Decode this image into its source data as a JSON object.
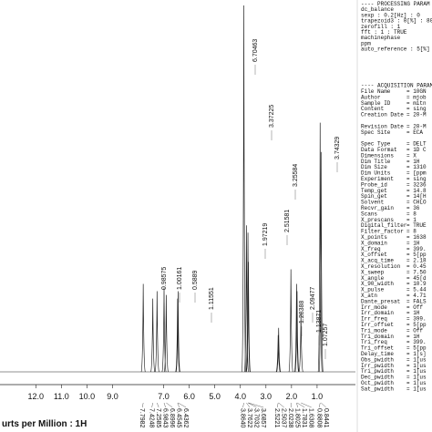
{
  "chart_data": {
    "type": "nmr",
    "x_title": "urts per Million : 1H",
    "xlim": [
      13.4,
      -0.5
    ],
    "ylim": [
      0,
      100
    ],
    "xticks": [
      {
        "value": 12,
        "label": "12.0"
      },
      {
        "value": 11,
        "label": "11.0"
      },
      {
        "value": 10,
        "label": "10.0"
      },
      {
        "value": 9,
        "label": "9.0"
      },
      {
        "value": 7,
        "label": "7.0"
      },
      {
        "value": 6,
        "label": "6.0"
      },
      {
        "value": 5,
        "label": "5.0"
      },
      {
        "value": 4,
        "label": "4.0"
      },
      {
        "value": 3,
        "label": "3.0"
      },
      {
        "value": 2,
        "label": "2.0"
      },
      {
        "value": 1,
        "label": "1.0"
      }
    ],
    "color": "#222222",
    "peaks": {
      "x": [
        7.7982,
        7.4248,
        7.2585,
        6.9843,
        6.8996,
        6.4545,
        6.4362,
        3.864,
        3.7622,
        3.7032,
        3.6857,
        2.5221,
        2.5037,
        2.0238,
        1.8025,
        1.7831,
        1.6308,
        0.8808,
        0.8441
      ],
      "x_labels": [
        "7.7982",
        "7.4248",
        "7.2585",
        "6.9843",
        "6.8996",
        "6.4545",
        "6.4362",
        "3.8640",
        "3.7622",
        "3.7032",
        "3.6857",
        "2.5221",
        "2.5037",
        "2.0238",
        "1.8025",
        "1.7831",
        "1.6308",
        "0.8808",
        "0.8441"
      ],
      "values": [
        24,
        20,
        22,
        23,
        21,
        20,
        22,
        100,
        40,
        38,
        30,
        10,
        12,
        28,
        24,
        22,
        16,
        68,
        60
      ]
    },
    "integrals": [
      "0.98575",
      "1.00161",
      "0.5889",
      "1.11551",
      "6.70463",
      "3.37225",
      "1.97219",
      "2.51581",
      "3.25584",
      "1.28388",
      "2.09477",
      "1.13871",
      "1.07257",
      "3.74329"
    ],
    "panel": {
      "processing_title": "---- PROCESSING PARAM",
      "processing_lines": [
        "dc_balance",
        "sexp : 0.2[Hz] : 0",
        "trapezoid3 : 0[%] : 80",
        "zerofill : 1",
        "fft : 1 : TRUE",
        "machinephase",
        "ppm",
        "auto_reference : 5[%]"
      ],
      "acquisition_title": "---- ACQUISITION PARAM",
      "keys": [
        "File Name",
        "Author",
        "Sample ID",
        "Content",
        "Creation Date",
        "Revision Date",
        "Spec Site",
        "Spec Type",
        "Data Format",
        "Dimensions",
        "Dim Title",
        "Dim Size",
        "Dim Units",
        "Experiment",
        "Probe_id",
        "Temp_get",
        "Spin_get",
        "Solvent",
        "Recvr_gain",
        "Scans",
        "X_prescans",
        "Digital_filter",
        "Filter_factor",
        "X_points",
        "X_domain",
        "X_freq",
        "X_offset",
        "X_acq_time",
        "X_resolution",
        "X_sweep",
        "X_angle",
        "X_90_width",
        "X_pulse",
        "X_atn",
        "Dante_presat",
        "Irr_mode",
        "Irr_domain",
        "Irr_freq",
        "Irr_offset",
        "Tri_mode",
        "Tri_domain",
        "Tri_freq",
        "Tri_offset",
        "Delay_time",
        "Obs_pwidth",
        "Irr_pwidth",
        "Tri_pwidth",
        "Dec_pwidth",
        "Oct_pwidth",
        "Sat_pwidth"
      ],
      "values": [
        "= 10GN",
        "= mjob",
        "= mitn",
        "= sing",
        "= 20-M",
        "= 20-M",
        "= ECA",
        "= DELT",
        "= 1D C",
        "= X",
        "= 1H",
        "= 1310",
        "= [ppm",
        "= sing",
        "= 3236",
        "= 14.8",
        "= 14[H",
        "= CHLO",
        "= 36",
        "= 8",
        "= 1",
        "= TRUE",
        "= 8",
        "= 1638",
        "= 1H",
        "= 399.",
        "= 5[pp",
        "= 2.18",
        "= 0.45",
        "= 7.50",
        "= 45[d",
        "= 10.9",
        "= 5.44",
        "= 4.71",
        "= FALS",
        "= Off",
        "= 1H",
        "= 399.",
        "= 5[pp",
        "= Off",
        "= 1H",
        "= 399.",
        "= 5[pp",
        "= 1[s]",
        "= 1[us",
        "= 1[us",
        "= 1[us",
        "= 1[us",
        "= 1[us",
        "= 1[us"
      ]
    }
  }
}
